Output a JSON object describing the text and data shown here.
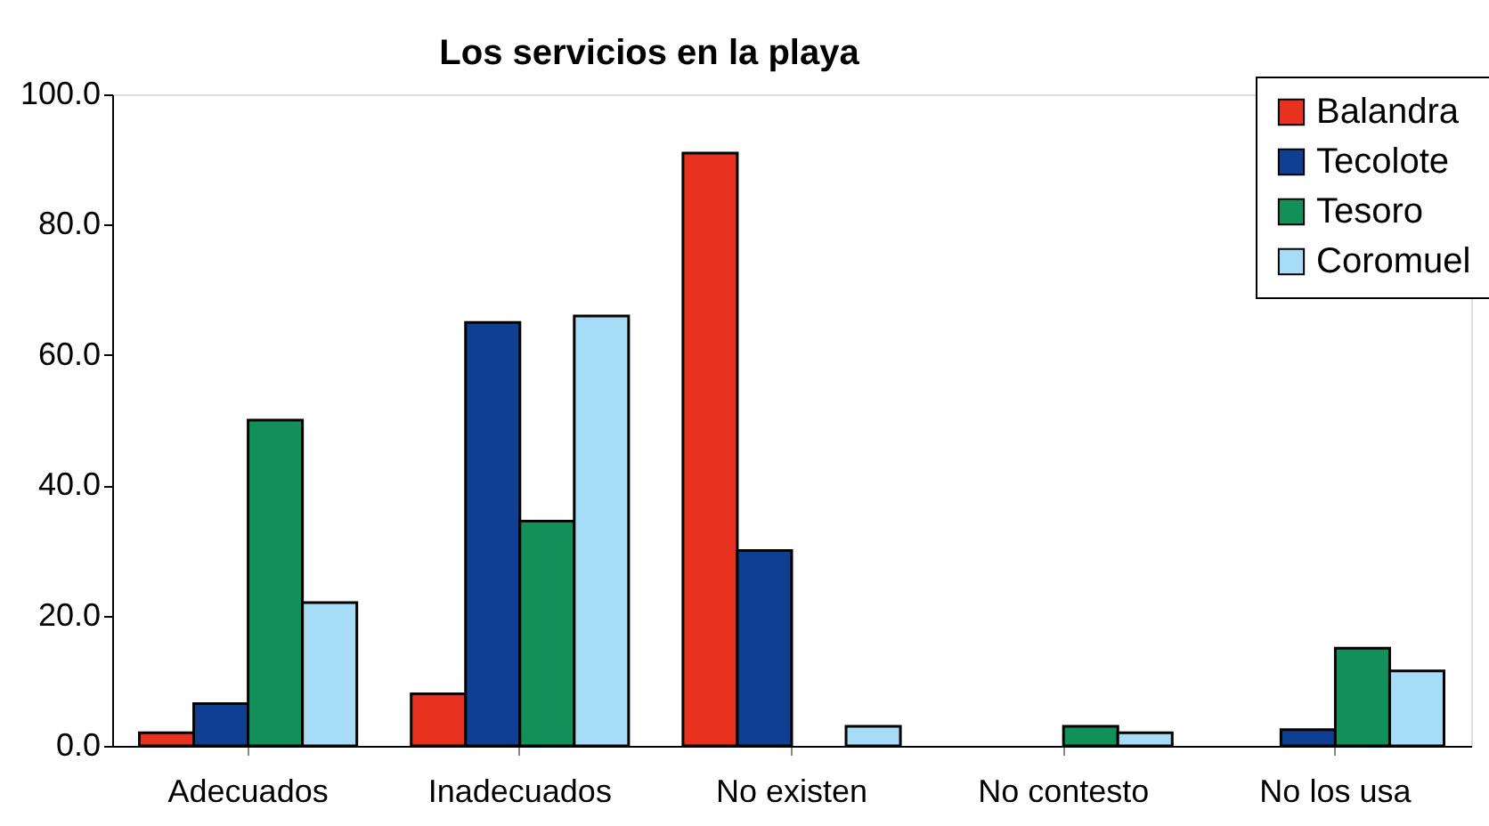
{
  "chart_data": {
    "type": "bar",
    "title": "Los servicios en la playa",
    "categories": [
      "Adecuados",
      "Inadecuados",
      "No existen",
      "No contesto",
      "No los usa"
    ],
    "series": [
      {
        "name": "Balandra",
        "color": "#e8311f",
        "values": [
          2,
          8,
          91,
          null,
          null
        ]
      },
      {
        "name": "Tecolote",
        "color": "#0f3f91",
        "values": [
          6.5,
          65,
          30,
          null,
          2.5
        ]
      },
      {
        "name": "Tesoro",
        "color": "#12905a",
        "values": [
          50,
          34.5,
          null,
          3,
          15
        ]
      },
      {
        "name": "Coromuel",
        "color": "#a6dcf5",
        "values": [
          22,
          66,
          3,
          2,
          11.5
        ]
      }
    ],
    "ylim": [
      0,
      100
    ],
    "yticks": [
      {
        "value": 0,
        "label": "0.0"
      },
      {
        "value": 20,
        "label": "20.0"
      },
      {
        "value": 40,
        "label": "40.0"
      },
      {
        "value": 60,
        "label": "60.0"
      },
      {
        "value": 80,
        "label": "80.0"
      },
      {
        "value": 100,
        "label": "100.0"
      }
    ],
    "grid": false,
    "legend": "top right"
  }
}
